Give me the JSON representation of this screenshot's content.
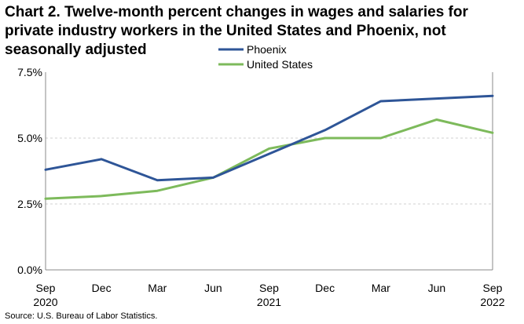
{
  "chart_data": {
    "type": "line",
    "title": "Chart 2. Twelve-month percent changes in wages and salaries for private industry workers in the United States and Phoenix, not seasonally adjusted",
    "categories": [
      "Sep 2020",
      "Dec",
      "Mar",
      "Jun",
      "Sep 2021",
      "Dec",
      "Mar",
      "Jun",
      "Sep 2022"
    ],
    "x_tick_labels": [
      {
        "line1": "Sep",
        "line2": "2020"
      },
      {
        "line1": "Dec",
        "line2": ""
      },
      {
        "line1": "Mar",
        "line2": ""
      },
      {
        "line1": "Jun",
        "line2": ""
      },
      {
        "line1": "Sep",
        "line2": "2021"
      },
      {
        "line1": "Dec",
        "line2": ""
      },
      {
        "line1": "Mar",
        "line2": ""
      },
      {
        "line1": "Jun",
        "line2": ""
      },
      {
        "line1": "Sep",
        "line2": "2022"
      }
    ],
    "series": [
      {
        "name": "Phoenix",
        "color": "#2E5597",
        "values": [
          3.8,
          4.2,
          3.4,
          3.5,
          4.4,
          5.3,
          6.4,
          6.5,
          6.6
        ]
      },
      {
        "name": "United States",
        "color": "#7DBA5B",
        "values": [
          2.7,
          2.8,
          3.0,
          3.5,
          4.6,
          5.0,
          5.0,
          5.7,
          5.2
        ]
      }
    ],
    "ylim": [
      0,
      7.5
    ],
    "y_ticks": [
      0,
      2.5,
      5.0,
      7.5
    ],
    "y_tick_labels": [
      "0.0%",
      "2.5%",
      "5.0%",
      "7.5%"
    ],
    "grid": true,
    "legend": "top-center",
    "xlabel": "",
    "ylabel": ""
  },
  "source": "Source: U.S. Bureau of Labor Statistics."
}
